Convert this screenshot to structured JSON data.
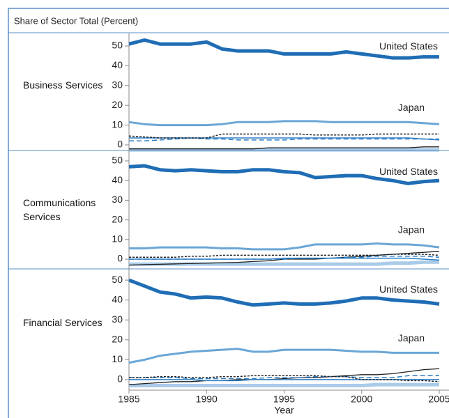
{
  "header": "Share of Sector Total (Percent)",
  "chart_data": [
    {
      "type": "line",
      "title": "Business Services",
      "x": [
        1985,
        1986,
        1987,
        1988,
        1989,
        1990,
        1991,
        1992,
        1993,
        1994,
        1995,
        1996,
        1997,
        1998,
        1999,
        2000,
        2001,
        2002,
        2003,
        2004,
        2005
      ],
      "xlim": [
        1985,
        2005
      ],
      "ylim": [
        -3,
        53
      ],
      "yticks": [
        0,
        10,
        20,
        30,
        40,
        50
      ],
      "series": [
        {
          "name": "United States",
          "color": "#1f6db5",
          "linestyle": "solid",
          "values": [
            51,
            53,
            51,
            51,
            51,
            52,
            48.5,
            47.5,
            47.5,
            47.5,
            46,
            46,
            46,
            46,
            47,
            46,
            45,
            44,
            44,
            44.5,
            44.5
          ]
        },
        {
          "name": "Japan",
          "color": "#6aa6d6",
          "linestyle": "solid",
          "values": [
            11.5,
            10.5,
            10,
            10,
            10,
            10,
            10.5,
            11.5,
            11.5,
            11.5,
            12,
            12,
            12,
            11.5,
            11.5,
            11.5,
            11.5,
            11.5,
            11.5,
            11,
            10.5
          ]
        },
        {
          "color": "#222222",
          "linestyle": "dotted",
          "values": [
            4.5,
            4,
            3.5,
            3.5,
            3.5,
            3.5,
            5.5,
            5.5,
            5.5,
            5.5,
            5.5,
            5.5,
            5,
            5,
            5,
            5,
            5.5,
            5.5,
            5.5,
            5.5,
            5.5
          ]
        },
        {
          "color": "#2a7cc4",
          "linestyle": "dashed",
          "values": [
            2,
            2,
            2.5,
            3,
            3.5,
            3,
            3,
            2.5,
            2.5,
            2.5,
            2.5,
            3,
            3,
            3,
            3,
            3,
            3,
            3,
            3,
            3,
            3
          ]
        },
        {
          "color": "#2a7cc4",
          "linestyle": "solid",
          "values": [
            3.5,
            3.5,
            3.5,
            3.5,
            3.5,
            3.5,
            3.5,
            3.5,
            3.5,
            3.5,
            3.5,
            3.5,
            3.5,
            3.5,
            3.5,
            3.5,
            3.5,
            3.5,
            3.5,
            3,
            2.5
          ]
        },
        {
          "color": "#222222",
          "linestyle": "solid",
          "values": [
            -2,
            -2,
            -2,
            -2,
            -2,
            -2,
            -2,
            -2,
            -2,
            -1.5,
            -1.5,
            -1.5,
            -1.5,
            -1.5,
            -1.5,
            -1.5,
            -1.5,
            -1.5,
            -1.5,
            -1,
            -1
          ]
        },
        {
          "color": "#a9cbe8",
          "linestyle": "solid",
          "values": [
            -2.5,
            -2.5,
            -2.5,
            -2.5,
            -2.5,
            -2.5,
            -2.5,
            -2.5,
            -2.5,
            -2.5,
            -2.5,
            -2.5,
            -2.5,
            -2.5,
            -2.5,
            -2.5,
            -2.5,
            -2.5,
            -2.5,
            -2.5,
            -2.5
          ]
        }
      ]
    },
    {
      "type": "line",
      "title": "Communications Services",
      "x": [
        1985,
        1986,
        1987,
        1988,
        1989,
        1990,
        1991,
        1992,
        1993,
        1994,
        1995,
        1996,
        1997,
        1998,
        1999,
        2000,
        2001,
        2002,
        2003,
        2004,
        2005
      ],
      "xlim": [
        1985,
        2005
      ],
      "ylim": [
        -3,
        53
      ],
      "yticks": [
        0,
        10,
        20,
        30,
        40,
        50
      ],
      "series": [
        {
          "name": "United States",
          "color": "#1f6db5",
          "linestyle": "solid",
          "values": [
            47,
            47.5,
            45.5,
            45,
            45.5,
            45,
            44.5,
            44.5,
            45.5,
            45.5,
            44.5,
            44,
            41.5,
            42,
            42.5,
            42.5,
            41,
            40,
            38.5,
            39.5,
            40
          ]
        },
        {
          "name": "Japan",
          "color": "#6aa6d6",
          "linestyle": "solid",
          "values": [
            5.5,
            5.5,
            6,
            6,
            6,
            6,
            5.5,
            5.5,
            5,
            5,
            5,
            6,
            7.5,
            7.5,
            7.5,
            7.5,
            8,
            7.5,
            7.5,
            7,
            6
          ]
        },
        {
          "color": "#222222",
          "linestyle": "dotted",
          "values": [
            1,
            1,
            1,
            1,
            1.5,
            1.5,
            2,
            2,
            2,
            2,
            2,
            2,
            2,
            2,
            2,
            2,
            2,
            2.5,
            2.5,
            2.5,
            2
          ]
        },
        {
          "color": "#2a7cc4",
          "linestyle": "dashed",
          "values": [
            0,
            0,
            0,
            0,
            0,
            0,
            0,
            0,
            0,
            0,
            0,
            0.5,
            0.5,
            0.5,
            1,
            1,
            1.5,
            1.5,
            1.5,
            1.5,
            1
          ]
        },
        {
          "color": "#2a7cc4",
          "linestyle": "solid",
          "values": [
            0,
            0,
            0,
            0,
            0,
            0,
            0,
            0,
            0,
            0,
            0.5,
            0.5,
            0.5,
            0.5,
            0.5,
            0.5,
            0.5,
            0.5,
            0.5,
            0,
            -0.5
          ]
        },
        {
          "color": "#222222",
          "linestyle": "solid",
          "values": [
            -3,
            -2.8,
            -2.6,
            -2.4,
            -2.2,
            -2,
            -1.8,
            -1.6,
            -1.2,
            -0.8,
            0,
            0,
            0,
            0.5,
            1,
            1.5,
            2,
            2.5,
            3,
            3.5,
            4
          ]
        },
        {
          "color": "#a9cbe8",
          "linestyle": "solid",
          "values": [
            -2.5,
            -2.5,
            -2.5,
            -2.5,
            -2.5,
            -2.5,
            -2.5,
            -2.5,
            -2.5,
            -2.5,
            -2.5,
            -2.5,
            -2.5,
            -2.5,
            -2.5,
            -2.5,
            -2.5,
            -2,
            -2,
            -1.5,
            -1.5
          ]
        }
      ]
    },
    {
      "type": "line",
      "title": "Financial Services",
      "x": [
        1985,
        1986,
        1987,
        1988,
        1989,
        1990,
        1991,
        1992,
        1993,
        1994,
        1995,
        1996,
        1997,
        1998,
        1999,
        2000,
        2001,
        2002,
        2003,
        2004,
        2005
      ],
      "xlim": [
        1985,
        2005
      ],
      "ylim": [
        -3,
        53
      ],
      "yticks": [
        0,
        10,
        20,
        30,
        40,
        50
      ],
      "xticks": [
        1985,
        1990,
        1995,
        2000,
        2005
      ],
      "xlabel": "Year",
      "series": [
        {
          "name": "United States",
          "color": "#1f6db5",
          "linestyle": "solid",
          "values": [
            50,
            47,
            44,
            43,
            41,
            41.5,
            41,
            39,
            37.5,
            38,
            38.5,
            38,
            38,
            38.5,
            39.5,
            41,
            41,
            40,
            39.5,
            39,
            38
          ]
        },
        {
          "name": "Japan",
          "color": "#6aa6d6",
          "linestyle": "solid",
          "values": [
            8.5,
            10,
            12,
            13,
            14,
            14.5,
            15,
            15.5,
            14,
            14,
            15,
            15,
            15,
            15,
            14.5,
            14,
            14,
            13.5,
            13.5,
            13.5,
            13.5
          ]
        },
        {
          "color": "#222222",
          "linestyle": "dotted",
          "values": [
            1,
            1,
            1.5,
            1.5,
            1,
            1,
            1.5,
            1.5,
            2,
            2,
            2,
            2,
            2,
            1.5,
            1.5,
            0,
            0,
            0,
            -0.5,
            -0.5,
            -1
          ]
        },
        {
          "color": "#2a7cc4",
          "linestyle": "dashed",
          "values": [
            1,
            1,
            1,
            1,
            0.5,
            0.5,
            0.5,
            0.5,
            0.5,
            1,
            1,
            1,
            1.5,
            1.5,
            1.5,
            1,
            1,
            1,
            2,
            2,
            2
          ]
        },
        {
          "color": "#2a7cc4",
          "linestyle": "solid",
          "values": [
            0,
            0,
            0,
            0,
            0,
            -0.5,
            -0.5,
            -0.5,
            0,
            0,
            0,
            0,
            0,
            0,
            0,
            0,
            0,
            0,
            0,
            0,
            0
          ]
        },
        {
          "color": "#222222",
          "linestyle": "solid",
          "values": [
            -2.5,
            -2,
            -1.5,
            -1,
            -1,
            -0.5,
            -0.5,
            0,
            0,
            0,
            0.5,
            1,
            1,
            1.5,
            2,
            2.5,
            2.5,
            3,
            4,
            5,
            5.5
          ]
        },
        {
          "color": "#a9cbe8",
          "linestyle": "solid",
          "values": [
            -3,
            -3,
            -3,
            -3,
            -3,
            -3,
            -3,
            -3,
            -3,
            -3,
            -3,
            -3,
            -3,
            -3,
            -3,
            -3,
            -2.5,
            -2.5,
            -2.5,
            -2.5,
            -2.5
          ]
        }
      ]
    }
  ]
}
